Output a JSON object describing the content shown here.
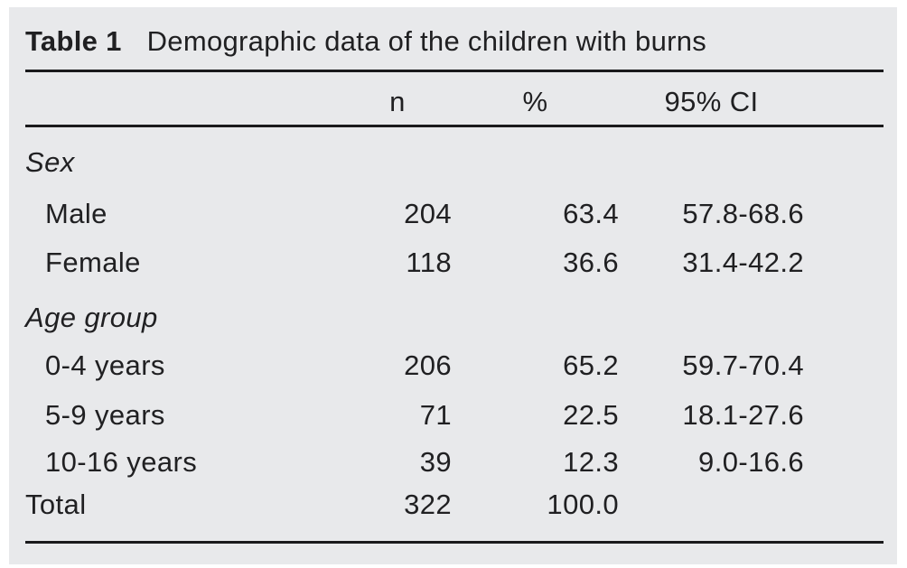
{
  "title": {
    "label": "Table 1",
    "text": "Demographic data of the children with burns"
  },
  "colors": {
    "panel_background": "#e8e9eb",
    "rule": "#1a1a1c",
    "text": "#202022"
  },
  "table": {
    "headers": {
      "label": "",
      "n": "n",
      "pct": "%",
      "ci": "95% CI"
    },
    "rows": [
      {
        "label": "Sex",
        "type": "group",
        "n": "",
        "pct": "",
        "ci": ""
      },
      {
        "label": "Male",
        "type": "item",
        "n": "204",
        "pct": "63.4",
        "ci": "57.8-68.6"
      },
      {
        "label": "Female",
        "type": "item",
        "n": "118",
        "pct": "36.6",
        "ci": "31.4-42.2"
      },
      {
        "label": "Age group",
        "type": "group",
        "n": "",
        "pct": "",
        "ci": ""
      },
      {
        "label": "0-4 years",
        "type": "item",
        "n": "206",
        "pct": "65.2",
        "ci": "59.7-70.4"
      },
      {
        "label": "5-9 years",
        "type": "item",
        "n": "71",
        "pct": "22.5",
        "ci": "18.1-27.6"
      },
      {
        "label": "10-16 years",
        "type": "item",
        "n": "39",
        "pct": "12.3",
        "ci": "9.0-16.6"
      },
      {
        "label": "Total",
        "type": "total",
        "n": "322",
        "pct": "100.0",
        "ci": ""
      }
    ]
  },
  "chart_data": {
    "type": "table",
    "title": "Table 1 Demographic data of the children with burns",
    "columns": [
      "",
      "n",
      "%",
      "95% CI"
    ],
    "sections": [
      {
        "section": "Sex",
        "rows": [
          {
            "category": "Male",
            "n": 204,
            "percent": 63.4,
            "ci_95": "57.8-68.6"
          },
          {
            "category": "Female",
            "n": 118,
            "percent": 36.6,
            "ci_95": "31.4-42.2"
          }
        ]
      },
      {
        "section": "Age group",
        "rows": [
          {
            "category": "0-4 years",
            "n": 206,
            "percent": 65.2,
            "ci_95": "59.7-70.4"
          },
          {
            "category": "5-9 years",
            "n": 71,
            "percent": 22.5,
            "ci_95": "18.1-27.6"
          },
          {
            "category": "10-16 years",
            "n": 39,
            "percent": 12.3,
            "ci_95": "9.0-16.6"
          }
        ]
      }
    ],
    "total_row": {
      "category": "Total",
      "n": 322,
      "percent": 100.0
    }
  }
}
